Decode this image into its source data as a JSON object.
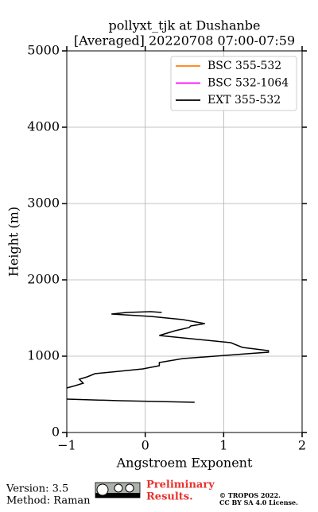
{
  "chart_data": {
    "type": "line",
    "title": "pollyxt_tjk at Dushanbe",
    "subtitle": "[Averaged] 20220708 07:00-07:59",
    "xlabel": "Angstroem Exponent",
    "ylabel": "Height (m)",
    "xlim": [
      -1,
      2
    ],
    "xticks": [
      {
        "value": -1,
        "label": "−1"
      },
      0,
      1,
      2
    ],
    "ylim": [
      0,
      5000
    ],
    "yticks": [
      0,
      1000,
      2000,
      3000,
      4000,
      5000
    ],
    "grid": true,
    "legend": "upper right",
    "series": [
      {
        "name": "BSC 355-532",
        "color": "#ff7f0e",
        "heights": [],
        "values": []
      },
      {
        "name": "BSC 532-1064",
        "color": "#ff00ff",
        "heights": [],
        "values": []
      },
      {
        "name": "EXT 355-532",
        "color": "#000000",
        "heights": [
          1573,
          1583,
          1573,
          1552,
          1521,
          1479,
          1427,
          1396,
          1375,
          1333,
          1271,
          1229,
          1177,
          1115,
          1073,
          1052,
          1031,
          969,
          917,
          875,
          833,
          802,
          771,
          729,
          698,
          646,
          615,
          583,
          500,
          437,
          417,
          396
        ],
        "values": [
          0.21,
          0.07,
          -0.23,
          -0.43,
          0.07,
          0.48,
          0.76,
          0.58,
          0.56,
          0.38,
          0.18,
          0.58,
          1.09,
          1.24,
          1.57,
          1.57,
          1.29,
          0.48,
          0.18,
          0.18,
          -0.03,
          -0.33,
          -0.64,
          -0.74,
          -0.84,
          -0.79,
          -0.89,
          -1.0,
          null,
          -1.0,
          -0.33,
          0.63
        ]
      }
    ]
  },
  "footer": {
    "version": "Version: 3.5",
    "method": "Method: Raman",
    "preliminary": [
      "Preliminary",
      "Results."
    ],
    "copyright": "© TROPOS 2022.",
    "license": "CC BY SA 4.0 License."
  }
}
